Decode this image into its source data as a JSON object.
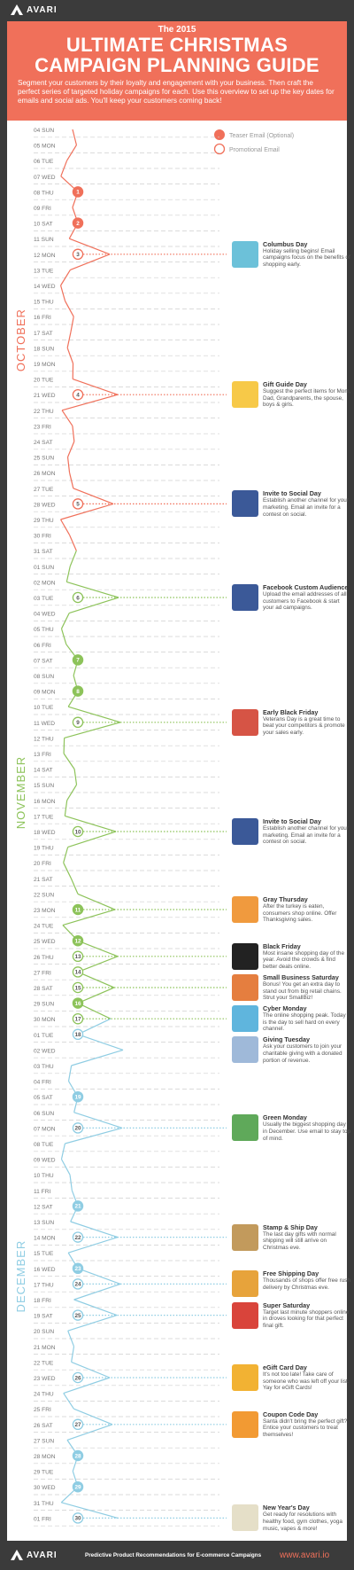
{
  "header": {
    "brand": "AVARI",
    "pre_title": "The 2015",
    "title_line1": "ULTIMATE CHRISTMAS",
    "title_line2": "CAMPAIGN PLANNING GUIDE",
    "description": "Segment your customers by their loyalty and engagement with your business. Then craft the perfect series of targeted holiday campaigns for each. Use this overview to set up the key dates for emails and social ads. You'll keep your customers coming back!"
  },
  "legend": {
    "teaser": "Teaser Email (Optional)",
    "promotional": "Promotional Email"
  },
  "colors": {
    "october": "#f0705a",
    "november": "#8dc35a",
    "december": "#8fcde3",
    "background": "#3b3b3b"
  },
  "months": [
    {
      "name": "OCTOBER",
      "color": "#f0705a",
      "days": [
        "04 SUN",
        "05 MON",
        "06 TUE",
        "07 WED",
        "08 THU",
        "09 FRI",
        "10 SAT",
        "11 SUN",
        "12 MON",
        "13 TUE",
        "14 WED",
        "15 THU",
        "16 FRI",
        "17 SAT",
        "18 SUN",
        "19 MON",
        "20 TUE",
        "21 WED",
        "22 THU",
        "23 FRI",
        "24 SAT",
        "25 SUN",
        "26 MON",
        "27 TUE",
        "28 WED",
        "29 THU",
        "30 FRI",
        "31 SAT"
      ]
    },
    {
      "name": "NOVEMBER",
      "color": "#8dc35a",
      "days": [
        "01 SUN",
        "02 MON",
        "03 TUE",
        "04 WED",
        "05 THU",
        "06 FRI",
        "07 SAT",
        "08 SUN",
        "09 MON",
        "10 TUE",
        "11 WED",
        "12 THU",
        "13 FRI",
        "14 SAT",
        "15 SUN",
        "16 MON",
        "17 TUE",
        "18 WED",
        "19 THU",
        "20 FRI",
        "21 SAT",
        "22 SUN",
        "23 MON",
        "24 TUE",
        "25 WED",
        "26 THU",
        "27 FRI",
        "28 SAT",
        "29 SUN",
        "30 MON"
      ]
    },
    {
      "name": "DECEMBER",
      "color": "#8fcde3",
      "days": [
        "01 TUE",
        "02 WED",
        "03 THU",
        "04 FRI",
        "05 SAT",
        "06 SUN",
        "07 MON",
        "08 TUE",
        "09 WED",
        "10 THU",
        "11 FRI",
        "12 SAT",
        "13 SUN",
        "14 MON",
        "15 TUE",
        "16 WED",
        "17 THU",
        "18 FRI",
        "19 SAT",
        "20 SUN",
        "21 MON",
        "22 TUE",
        "23 WED",
        "24 THU",
        "25 FRI",
        "26 SAT",
        "27 SUN",
        "28 MON",
        "29 TUE",
        "30 WED",
        "31 THU",
        "01 FRI"
      ]
    }
  ],
  "markers": [
    {
      "n": "1",
      "day": 4,
      "kind": "teaser"
    },
    {
      "n": "2",
      "day": 6,
      "kind": "teaser"
    },
    {
      "n": "3",
      "day": 8,
      "kind": "promo"
    },
    {
      "n": "4",
      "day": 17,
      "kind": "promo"
    },
    {
      "n": "5",
      "day": 24,
      "kind": "promo"
    },
    {
      "n": "6",
      "day": 30,
      "kind": "promo"
    },
    {
      "n": "7",
      "day": 34,
      "kind": "teaser"
    },
    {
      "n": "8",
      "day": 36,
      "kind": "teaser"
    },
    {
      "n": "9",
      "day": 38,
      "kind": "promo"
    },
    {
      "n": "10",
      "day": 45,
      "kind": "promo"
    },
    {
      "n": "11",
      "day": 50,
      "kind": "teaser"
    },
    {
      "n": "12",
      "day": 52,
      "kind": "teaser"
    },
    {
      "n": "13",
      "day": 53,
      "kind": "promo"
    },
    {
      "n": "14",
      "day": 54,
      "kind": "promo"
    },
    {
      "n": "15",
      "day": 55,
      "kind": "promo"
    },
    {
      "n": "16",
      "day": 56,
      "kind": "teaser"
    },
    {
      "n": "17",
      "day": 57,
      "kind": "promo"
    },
    {
      "n": "18",
      "day": 58,
      "kind": "promo"
    },
    {
      "n": "19",
      "day": 62,
      "kind": "teaser"
    },
    {
      "n": "20",
      "day": 64,
      "kind": "promo"
    },
    {
      "n": "21",
      "day": 69,
      "kind": "teaser"
    },
    {
      "n": "22",
      "day": 71,
      "kind": "promo"
    },
    {
      "n": "23",
      "day": 73,
      "kind": "teaser"
    },
    {
      "n": "24",
      "day": 74,
      "kind": "promo"
    },
    {
      "n": "25",
      "day": 76,
      "kind": "promo"
    },
    {
      "n": "26",
      "day": 80,
      "kind": "promo"
    },
    {
      "n": "27",
      "day": 83,
      "kind": "promo"
    },
    {
      "n": "28",
      "day": 85,
      "kind": "teaser"
    },
    {
      "n": "29",
      "day": 87,
      "kind": "teaser"
    },
    {
      "n": "30",
      "day": 89,
      "kind": "promo"
    }
  ],
  "events": [
    {
      "title": "Columbus Day",
      "desc": "Holiday selling begins! Email campaigns focus on the benefits of shopping early.",
      "day": 8,
      "icon": "ship-icon"
    },
    {
      "title": "Gift Guide Day",
      "desc": "Suggest the perfect items for Mom, Dad, Grandparents, the spouse, boys & girls.",
      "day": 17,
      "icon": "gift-icon"
    },
    {
      "title": "Invite to Social Day",
      "desc": "Establish another channel for your marketing. Email an invite for a contest on social.",
      "day": 24,
      "icon": "social-icon"
    },
    {
      "title": "Facebook Custom Audience",
      "desc": "Upload the email addresses of all customers to Facebook & start your ad campaigns.",
      "day": 30,
      "icon": "facebook-icon"
    },
    {
      "title": "Early Black Friday",
      "desc": "Veterans Day is a great time to beat your competitors & promote your sales early.",
      "day": 38,
      "icon": "flag-icon"
    },
    {
      "title": "Invite to Social Day",
      "desc": "Establish another channel for your marketing. Email an invite for a contest on social.",
      "day": 45,
      "icon": "social-icon"
    },
    {
      "title": "Gray Thursday",
      "desc": "After the turkey is eaten, consumers shop online. Offer Thanksgiving sales.",
      "day": 50,
      "icon": "thanksgiving-icon"
    },
    {
      "title": "Black Friday",
      "desc": "Most insane shopping day of the year. Avoid the crowds & find better deals online.",
      "day": 53,
      "icon": "black-friday-icon"
    },
    {
      "title": "Small Business Saturday",
      "desc": "Bonus! You get an extra day to stand out from big retail chains. Strut your SmallBiz!",
      "day": 55,
      "icon": "store-icon"
    },
    {
      "title": "Cyber Monday",
      "desc": "The online shopping peak. Today is the day to sell hard on every channel.",
      "day": 57,
      "icon": "laptop-icon"
    },
    {
      "title": "Giving Tuesday",
      "desc": "Ask your customers to join your charitable giving with a donated portion of revenue.",
      "day": 59,
      "icon": "giving-icon"
    },
    {
      "title": "Green Monday",
      "desc": "Usually the biggest shopping day in December. Use email to stay top of mind.",
      "day": 64,
      "icon": "money-icon"
    },
    {
      "title": "Stamp & Ship Day",
      "desc": "The last day gifts with normal shipping will still arrive on Christmas eve.",
      "day": 71,
      "icon": "package-icon"
    },
    {
      "title": "Free Shipping Day",
      "desc": "Thousands of shops offer free rush delivery by Christmas eve.",
      "day": 74,
      "icon": "truck-icon"
    },
    {
      "title": "Super Saturday",
      "desc": "Target last minute shoppers online in droves looking for that perfect final gift.",
      "day": 76,
      "icon": "superman-icon"
    },
    {
      "title": "eGift Card Day",
      "desc": "It's not too late! Take care of someone who was left off your list. Yay for eGift Cards!",
      "day": 80,
      "icon": "gift-card-icon"
    },
    {
      "title": "Coupon Code Day",
      "desc": "Santa didn't bring the perfect gift? Entice your customers to treat themselves!",
      "day": 83,
      "icon": "bag-icon"
    },
    {
      "title": "New Year's Day",
      "desc": "Get ready for resolutions with healthy food, gym clothes, yoga music, vapes & more!",
      "day": 89,
      "icon": "new-year-icon"
    }
  ],
  "footer": {
    "brand": "AVARI",
    "tagline": "Predictive Product Recommendations for E-commerce Campaigns",
    "url": "www.avari.io"
  }
}
